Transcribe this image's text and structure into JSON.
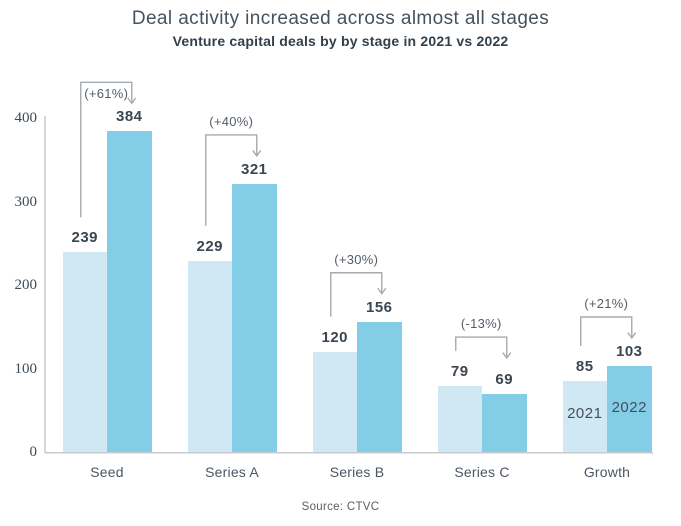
{
  "header": {
    "title": "Deal activity increased across almost all stages",
    "subtitle": "Venture capital deals by by stage in 2021 vs 2022"
  },
  "footer": {
    "source": "Source: CTVC"
  },
  "colors": {
    "bar_2021": "#cfe8f4",
    "bar_2022": "#84cde6",
    "axis_line": "#c6cbd0",
    "bracket_line": "#a6abb0",
    "title_text": "#45525f",
    "subtitle_text": "#323f4c",
    "value_label_text": "#3b4650",
    "percent_label_text": "#555e68",
    "category_label_text": "#4b5661",
    "tick_label_text": "#3f4a54",
    "year_label_text": "#454f59",
    "source_text": "#585e66"
  },
  "chart_data": {
    "type": "bar",
    "title": "Deal activity increased across almost all stages",
    "subtitle": "Venture capital deals by by stage in 2021 vs 2022",
    "categories": [
      "Seed",
      "Series A",
      "Series B",
      "Series C",
      "Growth"
    ],
    "series": [
      {
        "name": "2021",
        "values": [
          239,
          229,
          120,
          79,
          85
        ],
        "color": "#cfe8f4"
      },
      {
        "name": "2022",
        "values": [
          384,
          321,
          156,
          69,
          103
        ],
        "color": "#84cde6"
      }
    ],
    "annotations": [
      {
        "category": "Seed",
        "label": "(+61%)"
      },
      {
        "category": "Series A",
        "label": "(+40%)"
      },
      {
        "category": "Series B",
        "label": "(+30%)"
      },
      {
        "category": "Series C",
        "label": "(-13%)"
      },
      {
        "category": "Growth",
        "label": "(+21%)"
      }
    ],
    "xlabel": "",
    "ylabel": "",
    "ylim": [
      0,
      400
    ],
    "yticks": [
      0,
      100,
      200,
      300,
      400
    ],
    "grid": false,
    "legend": {
      "position": "inside-growth-bars",
      "labels": [
        "2021",
        "2022"
      ]
    },
    "source": "Source: CTVC"
  }
}
